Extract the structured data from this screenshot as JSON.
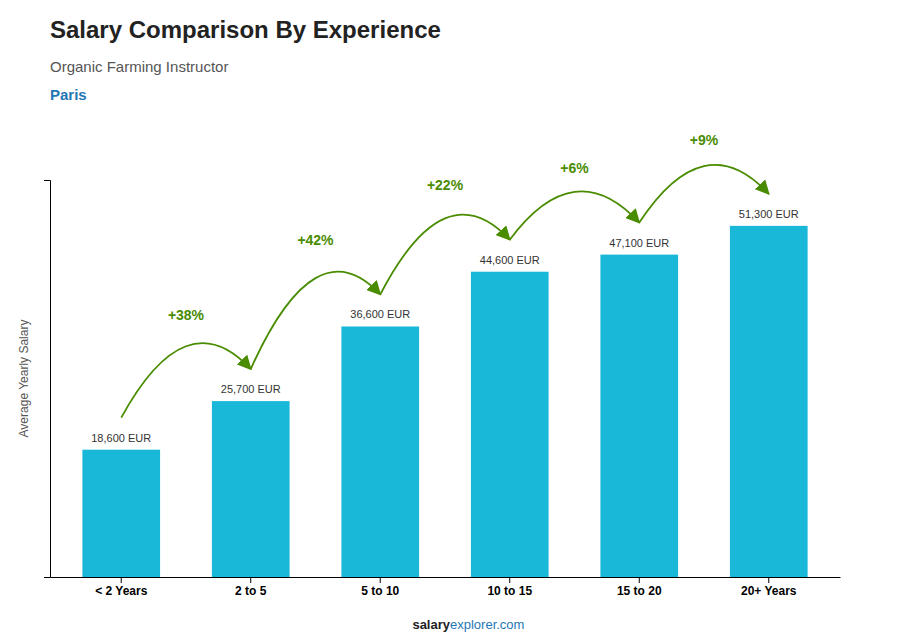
{
  "chart_data": {
    "type": "bar",
    "title": "Salary Comparison By Experience",
    "subtitle": "Organic Farming Instructor",
    "city": "Paris",
    "y_label": "Average Yearly Salary",
    "categories": [
      "< 2 Years",
      "2 to 5",
      "5 to 10",
      "10 to 15",
      "15 to 20",
      "20+ Years"
    ],
    "values": [
      18600,
      25700,
      36600,
      44600,
      47100,
      51300
    ],
    "value_labels": [
      "18,600 EUR",
      "25,700 EUR",
      "36,600 EUR",
      "44,600 EUR",
      "47,100 EUR",
      "51,300 EUR"
    ],
    "data_labels": true,
    "annotations": [
      "+38%",
      "+42%",
      "+22%",
      "+6%",
      "+9%"
    ],
    "footer": [
      "salary",
      "explorer.com"
    ],
    "color": "#1ab8d8",
    "ylim": [
      0,
      58000
    ],
    "yticks": [],
    "tick_labels": "x",
    "grid": false
  }
}
